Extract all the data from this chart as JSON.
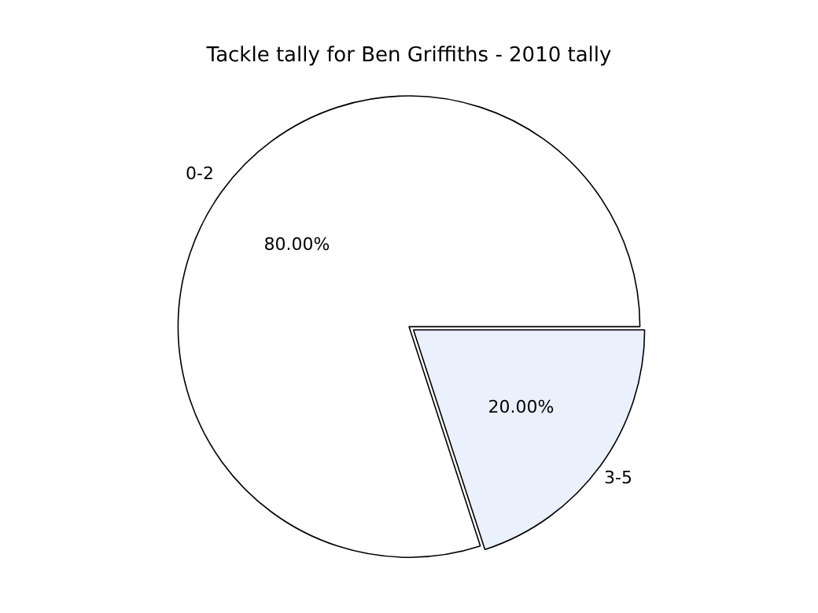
{
  "chart_data": {
    "type": "pie",
    "title": "Tackle tally for Ben Griffiths - 2010 tally",
    "categories": [
      "0-2",
      "3-5"
    ],
    "values": [
      80,
      20
    ],
    "colors": [
      "#ffffff",
      "#eaf0fc"
    ],
    "value_labels": [
      "80.00%",
      "20.00%"
    ],
    "legend": false
  }
}
